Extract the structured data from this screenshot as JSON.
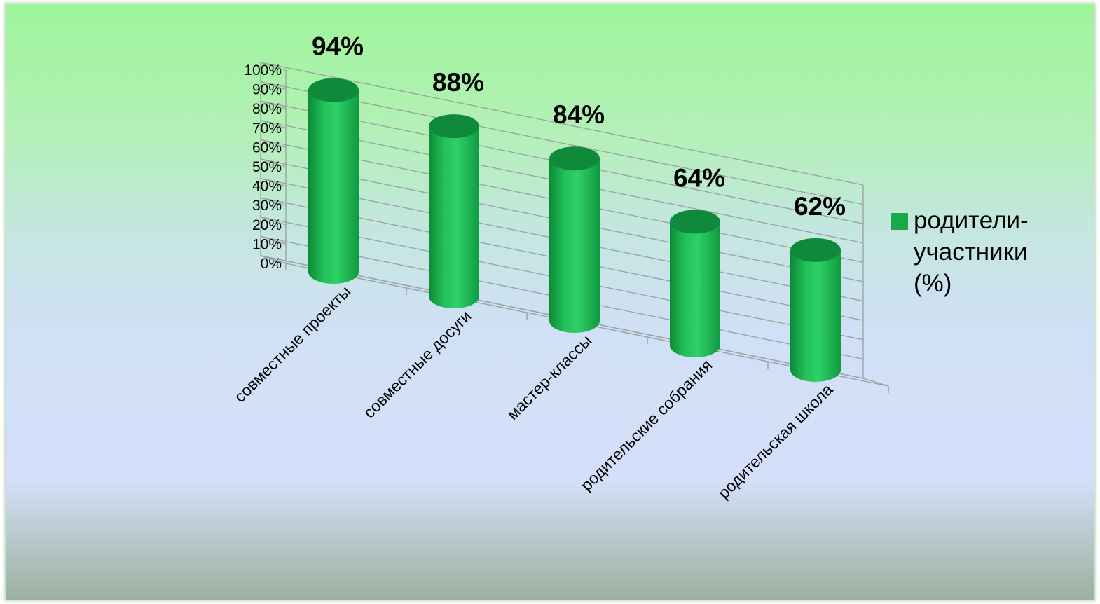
{
  "chart_data": {
    "type": "bar",
    "categories": [
      "совместные проекты",
      "совместные досуги",
      "мастер-классы",
      "родительские собрания",
      "родительская школа"
    ],
    "series": [
      {
        "name": "родители-участники (%)",
        "values": [
          94,
          88,
          84,
          64,
          62
        ]
      }
    ],
    "data_labels": [
      "94%",
      "88%",
      "84%",
      "64%",
      "62%"
    ],
    "y_ticks": [
      "0%",
      "10%",
      "20%",
      "30%",
      "40%",
      "50%",
      "60%",
      "70%",
      "80%",
      "90%",
      "100%"
    ],
    "ylim": [
      0,
      100
    ],
    "legend_position": "right",
    "grid": true,
    "style": "3d-cylinder",
    "colors": {
      "bar": "#19a84a",
      "bar_top": "#0f8a3a",
      "grid": "#9aa0a0"
    }
  },
  "legend": {
    "label": "родители-участники (%)"
  }
}
